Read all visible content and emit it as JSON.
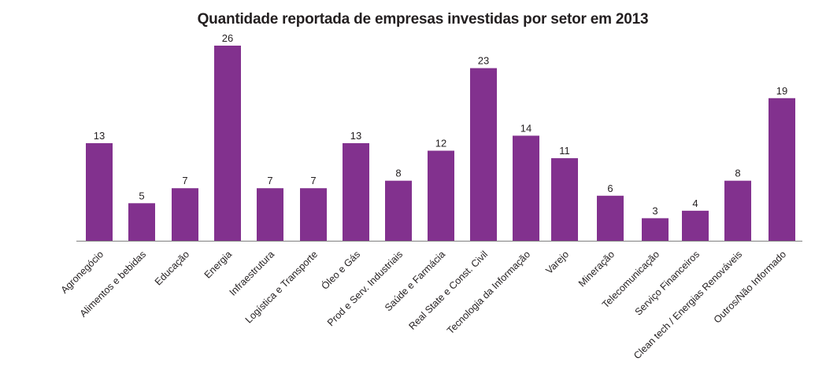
{
  "chart_data": {
    "type": "bar",
    "title": "Quantidade reportada de empresas investidas por setor em 2013",
    "xlabel": "",
    "ylabel": "",
    "ylim": [
      0,
      26
    ],
    "grid": false,
    "legend": "none",
    "bar_color": "#82318e",
    "axis_color": "#808080",
    "categories": [
      "Agronegócio",
      "Alimentos e bebidas",
      "Educação",
      "Energia",
      "Infraestrutura",
      "Logística e Transporte",
      "Óleo e Gás",
      "Prod e Serv. Industriais",
      "Saúde e Farmácia",
      "Real State e  Const. Civil",
      "Tecnologia da Informação",
      "Varejo",
      "Mineração",
      "Telecomunicação",
      "Serviço Financeiros",
      "Clean tech / Energias Renováveis",
      "Outros/Não Informado"
    ],
    "values": [
      13,
      5,
      7,
      26,
      7,
      7,
      13,
      8,
      12,
      23,
      14,
      11,
      6,
      3,
      4,
      8,
      19
    ]
  }
}
